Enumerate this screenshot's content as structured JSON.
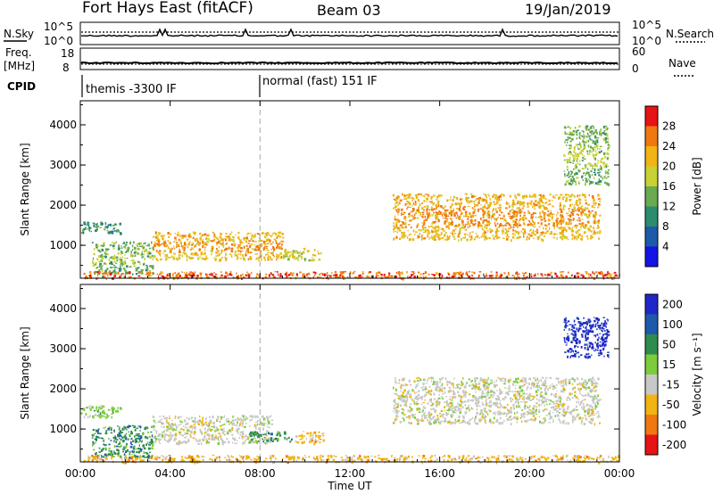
{
  "header": {
    "station": "Fort Hays East (fitACF)",
    "beam": "Beam 03",
    "date": "19/Jan/2019"
  },
  "strips": {
    "nsky_label": "N.Sky",
    "nsearch_label": "N.Search",
    "freq_label_1": "Freq.",
    "freq_label_2": "[MHz]",
    "nave_label": "Nave",
    "cpid_label": "CPID",
    "noise_ticks_left": [
      "10^5",
      "10^0"
    ],
    "noise_ticks_right": [
      "10^5",
      "10^0"
    ],
    "freq_ticks": [
      "18",
      "8"
    ],
    "nave_ticks": [
      "60",
      "0"
    ],
    "cpid_segments": [
      {
        "label": "themis -3300 IF",
        "start_hour": 0
      },
      {
        "label": "normal (fast) 151 IF",
        "start_hour": 8
      }
    ]
  },
  "chart_data": [
    {
      "type": "heatmap",
      "title": "",
      "xlabel": "Time UT",
      "ylabel": "Slant Range [km]",
      "xlim": [
        0,
        24
      ],
      "ylim": [
        180,
        4600
      ],
      "x_ticks": [
        "00:00",
        "04:00",
        "08:00",
        "12:00",
        "16:00",
        "20:00",
        "00:00"
      ],
      "y_ticks": [
        "1000",
        "2000",
        "3000",
        "4000"
      ],
      "colorbar": {
        "label": "Power [dB]",
        "ticks": [
          "4",
          "8",
          "12",
          "16",
          "20",
          "24",
          "28"
        ],
        "colors": [
          "#1414e6",
          "#1e5aaa",
          "#2e8c6e",
          "#6aaa50",
          "#c8d232",
          "#f0b414",
          "#f07810",
          "#e61414"
        ]
      },
      "echo_regions": [
        {
          "t_start": 0.0,
          "t_end": 1.8,
          "r_low": 1300,
          "r_high": 1600,
          "dominant": "8"
        },
        {
          "t_start": 0.5,
          "t_end": 3.2,
          "r_low": 300,
          "r_high": 1100,
          "dominant": "12"
        },
        {
          "t_start": 3.2,
          "t_end": 9.0,
          "r_low": 650,
          "r_high": 1350,
          "dominant": "20"
        },
        {
          "t_start": 9.0,
          "t_end": 10.8,
          "r_low": 650,
          "r_high": 950,
          "dominant": "16"
        },
        {
          "t_start": 0.0,
          "t_end": 24.0,
          "r_low": 190,
          "r_high": 360,
          "dominant": "24"
        },
        {
          "t_start": 13.9,
          "t_end": 23.1,
          "r_low": 1150,
          "r_high": 2300,
          "dominant": "20"
        },
        {
          "t_start": 21.5,
          "t_end": 23.5,
          "r_low": 2500,
          "r_high": 4000,
          "dominant": "12"
        }
      ]
    },
    {
      "type": "heatmap",
      "title": "",
      "xlabel": "Time UT",
      "ylabel": "Slant Range [km]",
      "xlim": [
        0,
        24
      ],
      "ylim": [
        180,
        4600
      ],
      "x_ticks": [
        "00:00",
        "04:00",
        "08:00",
        "12:00",
        "16:00",
        "20:00",
        "00:00"
      ],
      "y_ticks": [
        "1000",
        "2000",
        "3000",
        "4000"
      ],
      "colorbar": {
        "label": "Velocity [m s⁻¹]",
        "ticks": [
          "200",
          "100",
          "50",
          "15",
          "-15",
          "-50",
          "-100",
          "-200"
        ],
        "colors": [
          "#1e28c8",
          "#1e5aaa",
          "#2e8c4e",
          "#7ccc3c",
          "#c8c8c8",
          "#f0b414",
          "#f07810",
          "#e61414"
        ]
      },
      "echo_regions": [
        {
          "t_start": 0.0,
          "t_end": 1.8,
          "r_low": 1300,
          "r_high": 1600,
          "dominant": "15"
        },
        {
          "t_start": 0.5,
          "t_end": 3.2,
          "r_low": 300,
          "r_high": 1100,
          "dominant": "50"
        },
        {
          "t_start": 3.2,
          "t_end": 8.5,
          "r_low": 650,
          "r_high": 1350,
          "dominant": "-15"
        },
        {
          "t_start": 7.5,
          "t_end": 9.5,
          "r_low": 700,
          "r_high": 950,
          "dominant": "50"
        },
        {
          "t_start": 9.5,
          "t_end": 10.8,
          "r_low": 650,
          "r_high": 950,
          "dominant": "-50"
        },
        {
          "t_start": 0.0,
          "t_end": 24.0,
          "r_low": 190,
          "r_high": 360,
          "dominant": "-50"
        },
        {
          "t_start": 13.9,
          "t_end": 23.1,
          "r_low": 1150,
          "r_high": 2300,
          "dominant": "-15"
        },
        {
          "t_start": 21.5,
          "t_end": 23.5,
          "r_low": 2800,
          "r_high": 3800,
          "dominant": "200"
        }
      ]
    }
  ]
}
